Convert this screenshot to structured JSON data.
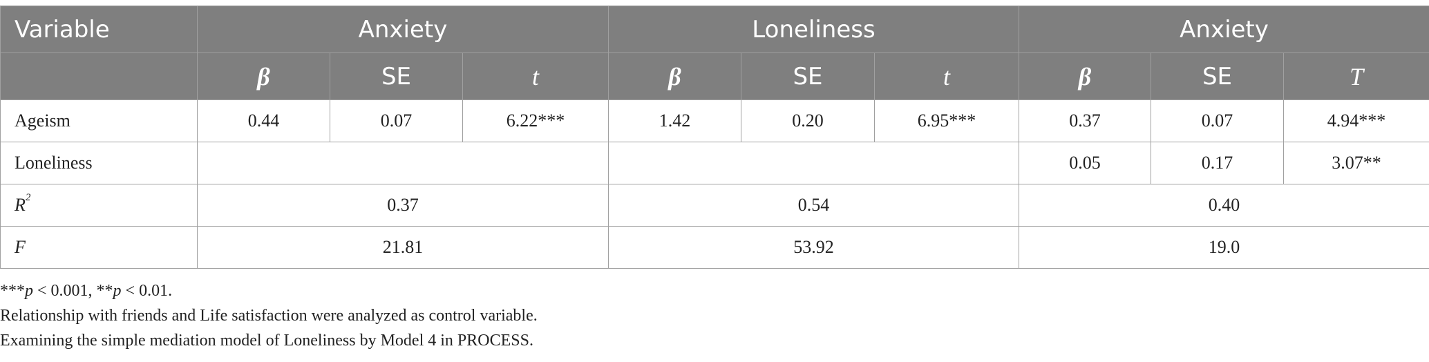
{
  "table": {
    "header_row1": {
      "variable": "Variable",
      "groups": [
        "Anxiety",
        "Loneliness",
        "Anxiety"
      ]
    },
    "header_row2": [
      "β",
      "SE",
      "t",
      "β",
      "SE",
      "t",
      "β",
      "SE",
      "T"
    ],
    "rows": [
      {
        "label": "Ageism",
        "cells": [
          "0.44",
          "0.07",
          "6.22***",
          "1.42",
          "0.20",
          "6.95***",
          "0.37",
          "0.07",
          "4.94***"
        ]
      },
      {
        "label": "Loneliness",
        "cells": [
          "0.05",
          "0.17",
          "3.07**"
        ]
      },
      {
        "label_main": "R",
        "label_sup": "2",
        "values": [
          "0.37",
          "0.54",
          "0.40"
        ]
      },
      {
        "label": "F",
        "values": [
          "21.81",
          "53.92",
          "19.0"
        ]
      }
    ]
  },
  "notes": {
    "sig_stars1": "***",
    "sig_p1": "p",
    "sig_rest1": " < 0.001, ",
    "sig_stars2": "**",
    "sig_p2": "p",
    "sig_rest2": " < 0.01.",
    "line2": "Relationship with friends and Life satisfaction were analyzed as control variable.",
    "line3": "Examining the simple mediation model of Loneliness by Model 4 in PROCESS."
  }
}
